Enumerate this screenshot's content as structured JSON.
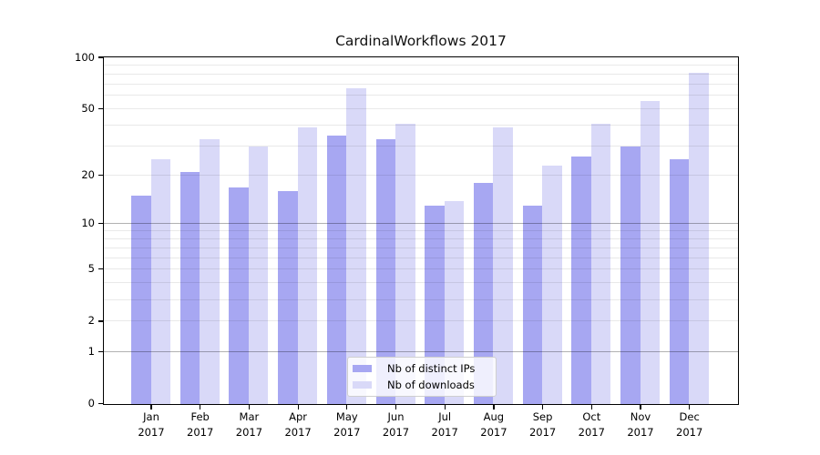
{
  "title": "CardinalWorkflows 2017",
  "chart_data": {
    "type": "bar",
    "title": "CardinalWorkflows 2017",
    "categories": [
      "Jan",
      "Feb",
      "Mar",
      "Apr",
      "May",
      "Jun",
      "Jul",
      "Aug",
      "Sep",
      "Oct",
      "Nov",
      "Dec"
    ],
    "category_second_line": "2017",
    "series": [
      {
        "name": "Nb of distinct IPs",
        "color": "#a7a7f2",
        "values": [
          15,
          21,
          17,
          16,
          35,
          33,
          13,
          18,
          13,
          26,
          30,
          25
        ]
      },
      {
        "name": "Nb of downloads",
        "color": "#d9d9f8",
        "values": [
          25,
          33,
          30,
          39,
          66,
          41,
          14,
          39,
          23,
          41,
          56,
          82
        ]
      }
    ],
    "yscale": "symlog-log1p",
    "ylim": [
      0,
      100
    ],
    "ytick_labels": [
      "0",
      "1",
      "2",
      "5",
      "10",
      "20",
      "50",
      "100"
    ],
    "ytick_values": [
      0,
      1,
      2,
      5,
      10,
      20,
      50,
      100
    ],
    "grid_major_values": [
      1,
      10
    ],
    "grid_minor_values": [
      2,
      3,
      4,
      5,
      6,
      7,
      8,
      9,
      20,
      30,
      40,
      50,
      60,
      70,
      80,
      90
    ],
    "legend_position": "lower center",
    "grid": true
  },
  "legend": {
    "items": [
      {
        "label": "Nb of distinct IPs",
        "color": "#a7a7f2"
      },
      {
        "label": "Nb of downloads",
        "color": "#d9d9f8"
      }
    ]
  },
  "colors": {
    "ip_bar": "#a7a7f2",
    "dl_bar": "#d9d9f8",
    "grid_minor": "rgba(0,0,0,0.085)",
    "grid_major": "rgba(0,0,0,0.30)",
    "spine": "#000000"
  }
}
